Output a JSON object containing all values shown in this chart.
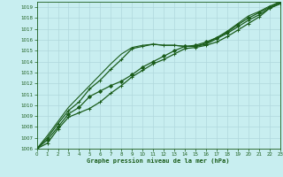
{
  "title": "Graphe pression niveau de la mer (hPa)",
  "bg_color": "#c8eef0",
  "grid_color": "#b0d8dc",
  "line_color": "#1a5c1a",
  "xlim": [
    0,
    23
  ],
  "ylim": [
    1006,
    1019.5
  ],
  "xticks": [
    0,
    1,
    2,
    3,
    4,
    5,
    6,
    7,
    8,
    9,
    10,
    11,
    12,
    13,
    14,
    15,
    16,
    17,
    18,
    19,
    20,
    21,
    22,
    23
  ],
  "yticks": [
    1006,
    1007,
    1008,
    1009,
    1010,
    1011,
    1012,
    1013,
    1014,
    1015,
    1016,
    1017,
    1018,
    1019
  ],
  "series": [
    {
      "y": [
        1006.0,
        1006.5,
        1007.8,
        1008.9,
        1009.3,
        1009.7,
        1010.3,
        1011.1,
        1011.8,
        1012.6,
        1013.2,
        1013.8,
        1014.2,
        1014.7,
        1015.2,
        1015.3,
        1015.5,
        1015.8,
        1016.3,
        1016.9,
        1017.5,
        1018.1,
        1018.9,
        1019.4
      ],
      "marker": "+",
      "linewidth": 0.9,
      "markersize": 3.5,
      "zorder": 3
    },
    {
      "y": [
        1006.0,
        1006.8,
        1008.0,
        1009.2,
        1009.8,
        1010.8,
        1011.3,
        1011.8,
        1012.2,
        1012.8,
        1013.5,
        1014.0,
        1014.5,
        1015.0,
        1015.4,
        1015.5,
        1015.8,
        1016.2,
        1016.7,
        1017.4,
        1018.0,
        1018.5,
        1019.0,
        1019.5
      ],
      "marker": "D",
      "linewidth": 0.9,
      "markersize": 2.0,
      "zorder": 3
    },
    {
      "y": [
        1006.0,
        1007.0,
        1008.3,
        1009.5,
        1010.3,
        1011.5,
        1012.3,
        1013.3,
        1014.2,
        1015.2,
        1015.4,
        1015.6,
        1015.5,
        1015.5,
        1015.4,
        1015.4,
        1015.6,
        1016.1,
        1016.6,
        1017.2,
        1017.8,
        1018.3,
        1018.9,
        1019.3
      ],
      "marker": "+",
      "linewidth": 0.9,
      "markersize": 3.0,
      "zorder": 2
    },
    {
      "y": [
        1006.0,
        1007.2,
        1008.5,
        1009.8,
        1010.8,
        1011.8,
        1012.8,
        1013.8,
        1014.7,
        1015.3,
        1015.5,
        1015.6,
        1015.5,
        1015.5,
        1015.4,
        1015.4,
        1015.7,
        1016.2,
        1016.8,
        1017.5,
        1018.2,
        1018.6,
        1019.1,
        1019.5
      ],
      "marker": null,
      "linewidth": 0.8,
      "markersize": 0,
      "zorder": 1
    }
  ]
}
